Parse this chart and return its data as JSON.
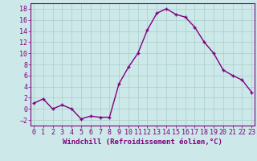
{
  "x": [
    0,
    1,
    2,
    3,
    4,
    5,
    6,
    7,
    8,
    9,
    10,
    11,
    12,
    13,
    14,
    15,
    16,
    17,
    18,
    19,
    20,
    21,
    22,
    23
  ],
  "y": [
    1,
    1.8,
    0,
    0.7,
    0,
    -1.8,
    -1.3,
    -1.5,
    -1.5,
    4.5,
    7.5,
    10,
    14.2,
    17.2,
    18,
    17,
    16.5,
    14.7,
    12,
    10,
    7,
    6,
    5.2,
    3
  ],
  "line_color": "#800080",
  "marker_color": "#800080",
  "bg_color": "#cce8e8",
  "grid_color": "#aacccc",
  "xlabel": "Windchill (Refroidissement éolien,°C)",
  "xlabel_color": "#800080",
  "tick_color": "#800080",
  "ylim": [
    -3,
    19
  ],
  "yticks": [
    -2,
    0,
    2,
    4,
    6,
    8,
    10,
    12,
    14,
    16,
    18
  ],
  "xticks": [
    0,
    1,
    2,
    3,
    4,
    5,
    6,
    7,
    8,
    9,
    10,
    11,
    12,
    13,
    14,
    15,
    16,
    17,
    18,
    19,
    20,
    21,
    22,
    23
  ],
  "font_size_label": 6.5,
  "font_size_tick": 6,
  "marker_size": 3,
  "line_width": 1.0
}
